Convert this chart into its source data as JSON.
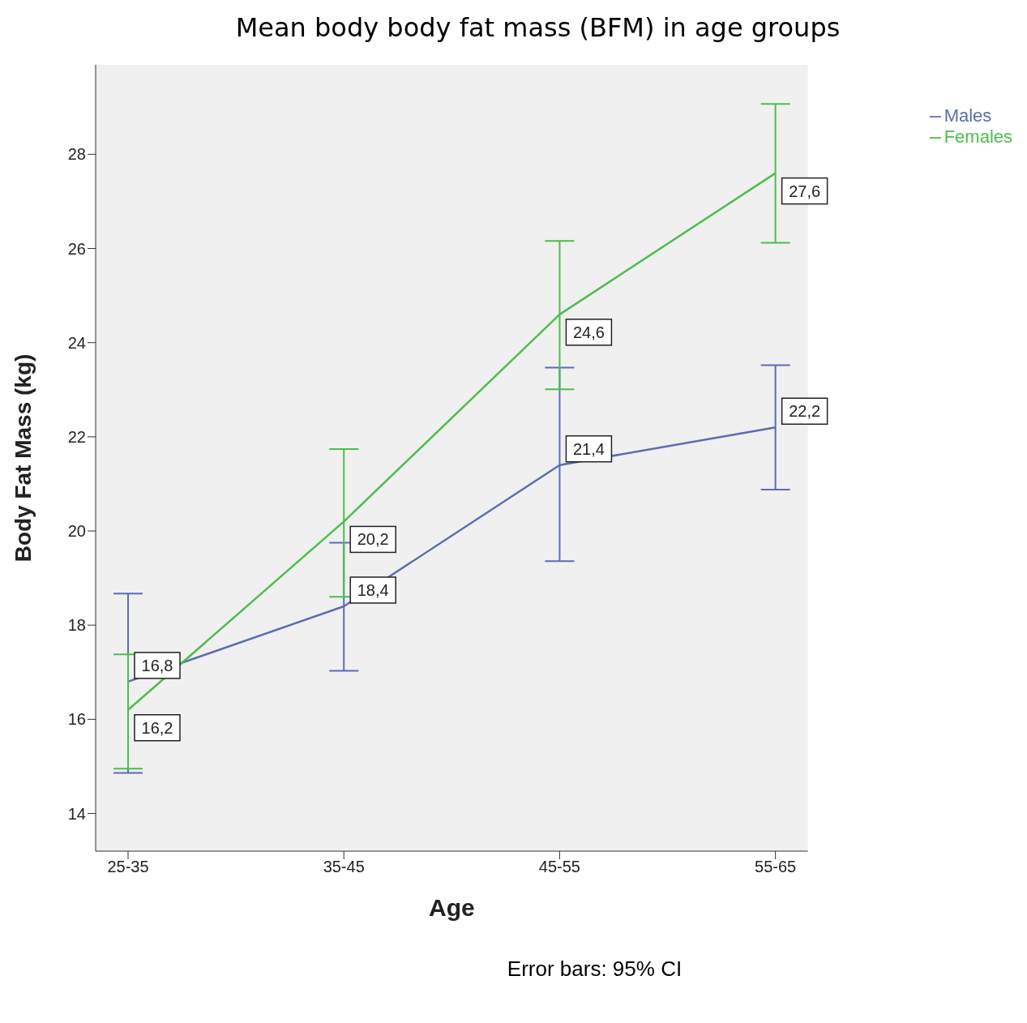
{
  "chart_data": {
    "type": "line",
    "title": "Mean body body fat mass  (BFM) in age groups",
    "xlabel": "Age",
    "ylabel": "Body Fat Mass (kg)",
    "annotations": [
      "Error bars: 95% CI"
    ],
    "categories": [
      "25-35",
      "35-45",
      "45-55",
      "55-65"
    ],
    "series": [
      {
        "name": "Males",
        "color": "#5b6cb4",
        "values": [
          16.8,
          18.4,
          21.4,
          22.2
        ],
        "value_labels": [
          "16,8",
          "18,4",
          "21,4",
          "22,2"
        ],
        "errors": [
          [
            14.86,
            18.67
          ],
          [
            17.03,
            19.75
          ],
          [
            19.36,
            23.47
          ],
          [
            20.88,
            23.52
          ]
        ]
      },
      {
        "name": "Females",
        "color": "#4cbe4c",
        "values": [
          16.2,
          20.2,
          24.6,
          27.6
        ],
        "value_labels": [
          "16,2",
          "20,2",
          "24,6",
          "27,6"
        ],
        "errors": [
          [
            14.95,
            17.38
          ],
          [
            18.6,
            21.74
          ],
          [
            23.01,
            26.16
          ],
          [
            26.12,
            29.07
          ]
        ]
      }
    ],
    "ylim": [
      13.2,
      29.9
    ],
    "yticks": [
      14,
      16,
      18,
      20,
      22,
      24,
      26,
      28
    ],
    "grid": false,
    "legend": "top right",
    "marker": "none",
    "line_style": "solid"
  }
}
